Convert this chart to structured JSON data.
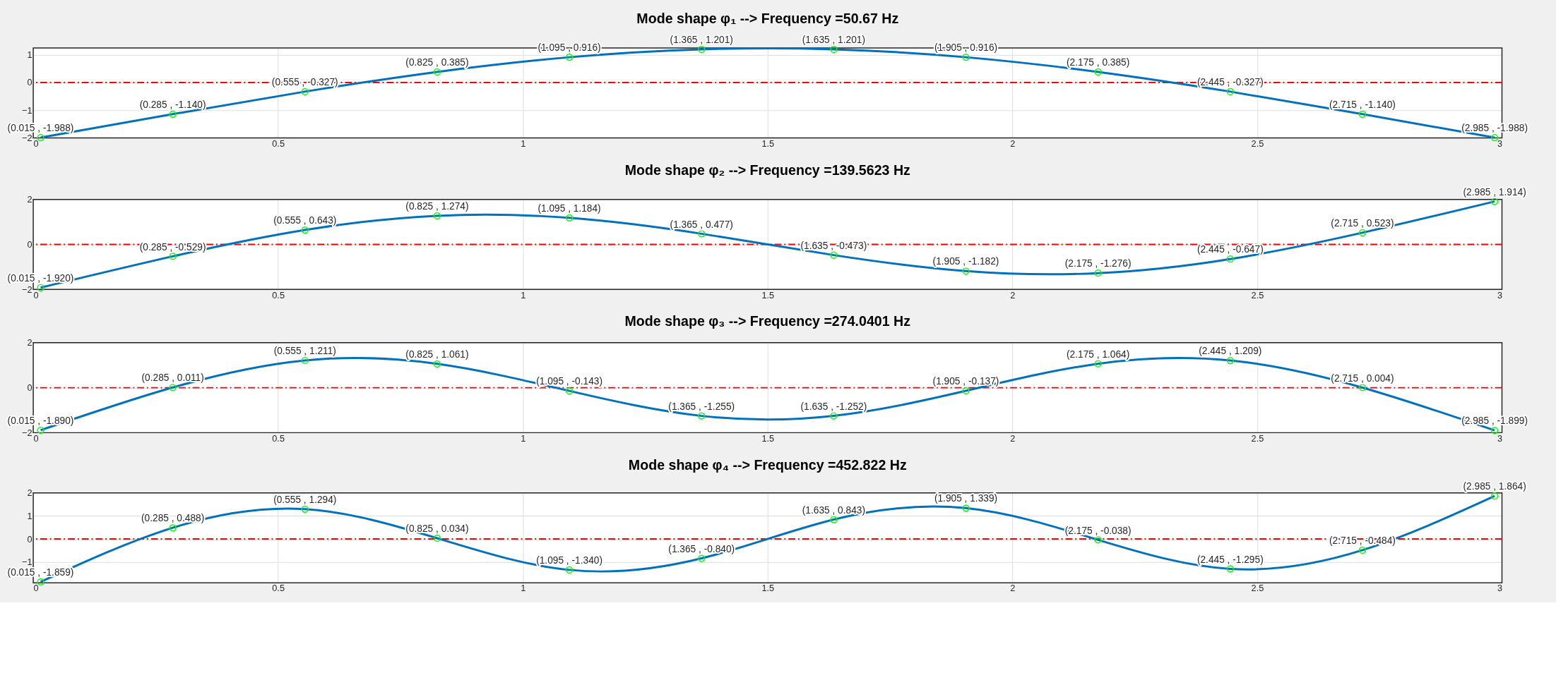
{
  "chart_data": [
    {
      "type": "line",
      "title": "Mode shape φ₁ --> Frequency =50.67 Hz",
      "x": [
        0.015,
        0.285,
        0.555,
        0.825,
        1.095,
        1.365,
        1.635,
        1.905,
        2.175,
        2.445,
        2.715,
        2.985
      ],
      "xlim": [
        0,
        3
      ],
      "xticks": [
        0,
        0.5,
        1,
        1.5,
        2,
        2.5,
        3
      ],
      "ylim": [
        -2,
        1.25
      ],
      "yticks": [
        -2,
        -1,
        0,
        1
      ],
      "grid": true,
      "series": [
        {
          "type": "line",
          "color": "#0072bd",
          "line_style": "solid",
          "values": [
            -1.988,
            -1.14,
            -0.327,
            0.385,
            0.916,
            1.201,
            1.201,
            0.916,
            0.385,
            -0.327,
            -1.14,
            -1.988
          ]
        },
        {
          "type": "scatter",
          "color": "#00ff00",
          "marker": "circle",
          "values": [
            -1.988,
            -1.14,
            -0.327,
            0.385,
            0.916,
            1.201,
            1.201,
            0.916,
            0.385,
            -0.327,
            -1.14,
            -1.988
          ],
          "value_labels": [
            "(0.015 , -1.988)",
            "(0.285 , -1.140)",
            "(0.555 , -0.327)",
            "(0.825 , 0.385)",
            "(1.095 , 0.916)",
            "(1.365 , 1.201)",
            "(1.635 , 1.201)",
            "(1.905 , 0.916)",
            "(2.175 , 0.385)",
            "(2.445 , -0.327)",
            "(2.715 , -1.140)",
            "(2.985 , -1.988)"
          ]
        }
      ],
      "ref_lines": [
        {
          "axis": "y",
          "value": 0,
          "color": "#ff0000",
          "line_style": "dashed"
        }
      ]
    },
    {
      "type": "line",
      "title": "Mode shape φ₂ --> Frequency =139.5623 Hz",
      "x": [
        0.015,
        0.285,
        0.555,
        0.825,
        1.095,
        1.365,
        1.635,
        1.905,
        2.175,
        2.445,
        2.715,
        2.985
      ],
      "xlim": [
        0,
        3
      ],
      "xticks": [
        0,
        0.5,
        1,
        1.5,
        2,
        2.5,
        3
      ],
      "ylim": [
        -2,
        2
      ],
      "yticks": [
        -2,
        0,
        2
      ],
      "grid": true,
      "series": [
        {
          "type": "line",
          "color": "#0072bd",
          "line_style": "solid",
          "values": [
            -1.92,
            -0.529,
            0.643,
            1.274,
            1.184,
            0.477,
            -0.473,
            -1.182,
            -1.276,
            -0.647,
            0.523,
            1.914
          ]
        },
        {
          "type": "scatter",
          "color": "#00ff00",
          "marker": "circle",
          "values": [
            -1.92,
            -0.529,
            0.643,
            1.274,
            1.184,
            0.477,
            -0.473,
            -1.182,
            -1.276,
            -0.647,
            0.523,
            1.914
          ],
          "value_labels": [
            "(0.015 , -1.920)",
            "(0.285 , -0.529)",
            "(0.555 , 0.643)",
            "(0.825 , 1.274)",
            "(1.095 , 1.184)",
            "(1.365 , 0.477)",
            "(1.635 , -0.473)",
            "(1.905 , -1.182)",
            "(2.175 , -1.276)",
            "(2.445 , -0.647)",
            "(2.715 , 0.523)",
            "(2.985 , 1.914)"
          ]
        }
      ],
      "ref_lines": [
        {
          "axis": "y",
          "value": 0,
          "color": "#ff0000",
          "line_style": "dashed"
        }
      ]
    },
    {
      "type": "line",
      "title": "Mode shape φ₃ --> Frequency =274.0401 Hz",
      "x": [
        0.015,
        0.285,
        0.555,
        0.825,
        1.095,
        1.365,
        1.635,
        1.905,
        2.175,
        2.445,
        2.715,
        2.985
      ],
      "xlim": [
        0,
        3
      ],
      "xticks": [
        0,
        0.5,
        1,
        1.5,
        2,
        2.5,
        3
      ],
      "ylim": [
        -2,
        2
      ],
      "yticks": [
        -2,
        0,
        2
      ],
      "grid": true,
      "series": [
        {
          "type": "line",
          "color": "#0072bd",
          "line_style": "solid",
          "values": [
            -1.89,
            0.011,
            1.211,
            1.061,
            -0.143,
            -1.255,
            -1.252,
            -0.137,
            1.064,
            1.209,
            0.004,
            -1.899
          ]
        },
        {
          "type": "scatter",
          "color": "#00ff00",
          "marker": "circle",
          "values": [
            -1.89,
            0.011,
            1.211,
            1.061,
            -0.143,
            -1.255,
            -1.252,
            -0.137,
            1.064,
            1.209,
            0.004,
            -1.899
          ],
          "value_labels": [
            "(0.015 , -1.890)",
            "(0.285 , 0.011)",
            "(0.555 , 1.211)",
            "(0.825 , 1.061)",
            "(1.095 , -0.143)",
            "(1.365 , -1.255)",
            "(1.635 , -1.252)",
            "(1.905 , -0.137)",
            "(2.175 , 1.064)",
            "(2.445 , 1.209)",
            "(2.715 , 0.004)",
            "(2.985 , -1.899)"
          ]
        }
      ],
      "ref_lines": [
        {
          "axis": "y",
          "value": 0,
          "color": "#ff0000",
          "line_style": "dashed"
        }
      ]
    },
    {
      "type": "line",
      "title": "Mode shape φ₄ --> Frequency =452.822 Hz",
      "x": [
        0.015,
        0.285,
        0.555,
        0.825,
        1.095,
        1.365,
        1.635,
        1.905,
        2.175,
        2.445,
        2.715,
        2.985
      ],
      "xlim": [
        0,
        3
      ],
      "xticks": [
        0,
        0.5,
        1,
        1.5,
        2,
        2.5,
        3
      ],
      "ylim": [
        -1.9,
        2
      ],
      "yticks": [
        -1,
        0,
        1,
        2
      ],
      "grid": true,
      "series": [
        {
          "type": "line",
          "color": "#0072bd",
          "line_style": "solid",
          "values": [
            -1.859,
            0.488,
            1.294,
            0.034,
            -1.34,
            -0.84,
            0.843,
            1.339,
            -0.038,
            -1.295,
            -0.484,
            1.864
          ]
        },
        {
          "type": "scatter",
          "color": "#00ff00",
          "marker": "circle",
          "values": [
            -1.859,
            0.488,
            1.294,
            0.034,
            -1.34,
            -0.84,
            0.843,
            1.339,
            -0.038,
            -1.295,
            -0.484,
            1.864
          ],
          "value_labels": [
            "(0.015 , -1.859)",
            "(0.285 , 0.488)",
            "(0.555 , 1.294)",
            "(0.825 , 0.034)",
            "(1.095 , -1.340)",
            "(1.365 , -0.840)",
            "(1.635 , 0.843)",
            "(1.905 , 1.339)",
            "(2.175 , -0.038)",
            "(2.445 , -1.295)",
            "(2.715 , -0.484)",
            "(2.985 , 1.864)"
          ]
        }
      ],
      "ref_lines": [
        {
          "axis": "y",
          "value": 0,
          "color": "#ff0000",
          "line_style": "dashed"
        }
      ]
    }
  ]
}
